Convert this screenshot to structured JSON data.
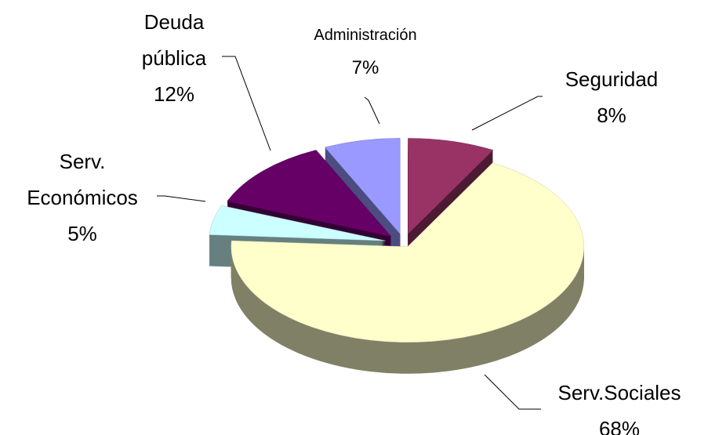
{
  "chart_data": {
    "type": "pie3d",
    "categories": [
      "Seguridad",
      "Serv.Sociales",
      "Serv. Económicos",
      "Deuda pública",
      "Administración"
    ],
    "values": [
      8,
      68,
      5,
      12,
      7
    ],
    "value_labels": [
      "8%",
      "68%",
      "5%",
      "12%",
      "7%"
    ],
    "colors": [
      "#993366",
      "#FFFFCC",
      "#CCFFFF",
      "#660066",
      "#9999FF"
    ]
  }
}
